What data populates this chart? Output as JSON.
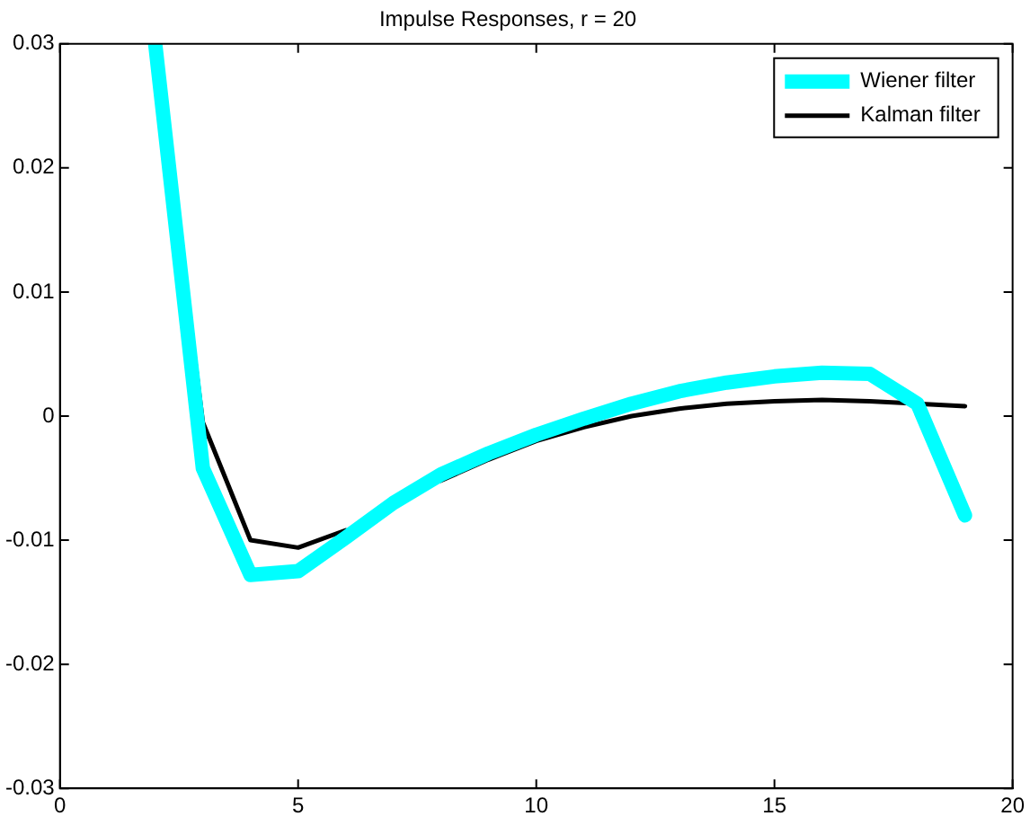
{
  "chart_data": {
    "type": "line",
    "title": "Impulse Responses, r = 20",
    "x": [
      2,
      3,
      4,
      5,
      6,
      7,
      8,
      9,
      10,
      11,
      12,
      13,
      14,
      15,
      16,
      17,
      18,
      19
    ],
    "series": [
      {
        "name": "Wiener filter",
        "color": "#00ffff",
        "values": [
          0.03,
          -0.0042,
          -0.0128,
          -0.0125,
          -0.0098,
          -0.007,
          -0.0047,
          -0.003,
          -0.0015,
          -0.0002,
          0.001,
          0.002,
          0.0027,
          0.0032,
          0.0035,
          0.0034,
          0.001,
          -0.008
        ]
      },
      {
        "name": "Kalman filter",
        "color": "#000000",
        "values": [
          0.03,
          -0.0005,
          -0.01,
          -0.0106,
          -0.0092,
          null,
          -0.0052,
          -0.0035,
          -0.002,
          -0.0009,
          0,
          0.0006,
          0.001,
          0.0012,
          0.0013,
          0.0012,
          0.001,
          0.0008
        ]
      }
    ],
    "xlim": [
      0,
      20
    ],
    "xticks": [
      0,
      5,
      10,
      15,
      20
    ],
    "ylim": [
      -0.03,
      0.03
    ],
    "yticks": [
      -0.03,
      -0.02,
      -0.01,
      0,
      0.01,
      0.02,
      0.03
    ],
    "grid": false,
    "legend": "top right",
    "marker": "none",
    "line_style": "solid"
  }
}
